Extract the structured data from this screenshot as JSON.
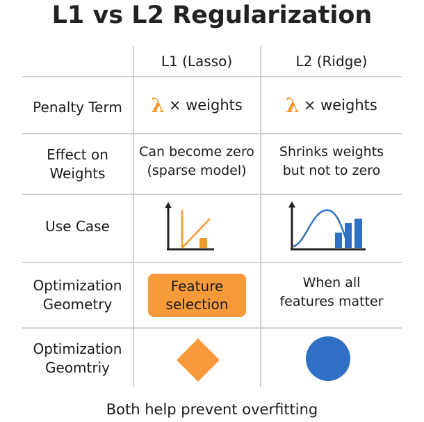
{
  "title": "L1 vs L2 Regularization",
  "columns": {
    "l1": "L1 (Lasso)",
    "l2": "L2 (Ridge)"
  },
  "rows": [
    {
      "label": "Penalty Term",
      "l1": {
        "symbol": "λ",
        "text": "× weights"
      },
      "l2": {
        "symbol": "λ",
        "text": "× weights"
      }
    },
    {
      "label_lines": [
        "Effect on",
        "Weights"
      ],
      "l1_lines": [
        "Can become zero",
        "(sparse model)"
      ],
      "l2_lines": [
        "Shrinks weights",
        "but not to zero"
      ]
    },
    {
      "label": "Use Case",
      "l1_icon": "linear-chart-icon",
      "l2_icon": "curve-bar-chart-icon"
    },
    {
      "label_lines": [
        "Optimization",
        "Geometry"
      ],
      "l1_lines": [
        "Feature",
        "selection"
      ],
      "l2_lines": [
        "When all",
        "features matter"
      ]
    },
    {
      "label_lines": [
        "Optimization",
        "Geomtriy"
      ],
      "l1_shape": "diamond-icon",
      "l2_shape": "circle-icon"
    }
  ],
  "footer": "Both help prevent overfitting",
  "colors": {
    "orange": "#f79a3a",
    "blue": "#2f6fc4",
    "grid": "#cfcfcf"
  }
}
